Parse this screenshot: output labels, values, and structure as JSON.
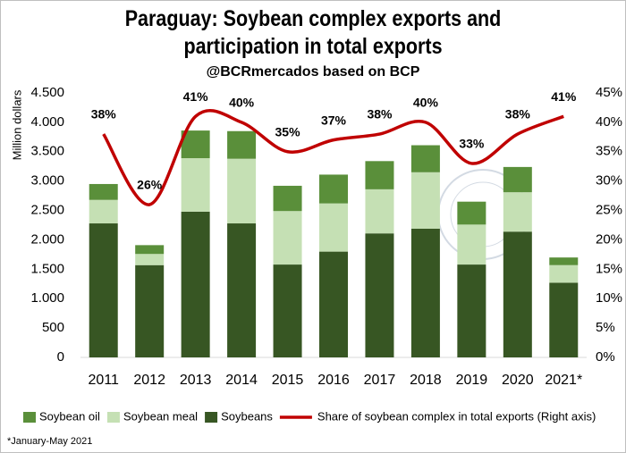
{
  "chart_data": {
    "type": "bar",
    "title": "Paraguay: Soybean complex exports and participation in total exports",
    "subtitle": "@BCRmercados based on BCP",
    "y_axis_label": "Million dollars",
    "footnote": "*January-May 2021",
    "categories": [
      "2011",
      "2012",
      "2013",
      "2014",
      "2015",
      "2016",
      "2017",
      "2018",
      "2019",
      "2020",
      "2021*"
    ],
    "stacked": true,
    "series": [
      {
        "name": "Soybeans",
        "color": "#375623",
        "values": [
          2280,
          1570,
          2480,
          2280,
          1580,
          1800,
          2110,
          2190,
          1580,
          2140,
          1270
        ]
      },
      {
        "name": "Soybean meal",
        "color": "#c5e0b4",
        "values": [
          400,
          190,
          910,
          1100,
          910,
          820,
          750,
          960,
          680,
          670,
          300
        ]
      },
      {
        "name": "Soybean oil",
        "color": "#5a8f3a",
        "values": [
          270,
          150,
          470,
          470,
          430,
          490,
          480,
          460,
          390,
          430,
          130
        ]
      },
      {
        "name": "Share of soybean complex in total exports (Right axis)",
        "color": "#c00000",
        "type": "line",
        "axis": "y2",
        "values": [
          38,
          26,
          41,
          40,
          35,
          37,
          38,
          40,
          33,
          38,
          41
        ],
        "value_labels": [
          "38%",
          "26%",
          "41%",
          "40%",
          "35%",
          "37%",
          "38%",
          "40%",
          "33%",
          "38%",
          "41%"
        ]
      }
    ],
    "legend_order": [
      "Soybean oil",
      "Soybean meal",
      "Soybeans",
      "Share of soybean complex in total exports (Right axis)"
    ],
    "ylim": [
      0,
      4500
    ],
    "yticks": [
      0,
      500,
      {
        "value": 1000,
        "label": "1.000"
      },
      {
        "value": 1500,
        "label": "1.500"
      },
      {
        "value": 2000,
        "label": "2.000"
      },
      {
        "value": 2500,
        "label": "2.500"
      },
      {
        "value": 3000,
        "label": "3.000"
      },
      {
        "value": 3500,
        "label": "3.500"
      },
      {
        "value": 4000,
        "label": "4.000"
      },
      {
        "value": 4500,
        "label": "4.500"
      }
    ],
    "y2lim": [
      0,
      45
    ],
    "y2ticks": [
      {
        "value": 0,
        "label": "0%"
      },
      {
        "value": 5,
        "label": "5%"
      },
      {
        "value": 10,
        "label": "10%"
      },
      {
        "value": 15,
        "label": "15%"
      },
      {
        "value": 20,
        "label": "20%"
      },
      {
        "value": 25,
        "label": "25%"
      },
      {
        "value": 30,
        "label": "30%"
      },
      {
        "value": 35,
        "label": "35%"
      },
      {
        "value": 40,
        "label": "40%"
      },
      {
        "value": 45,
        "label": "45%"
      }
    ],
    "grid": false,
    "legend": "bottom"
  }
}
